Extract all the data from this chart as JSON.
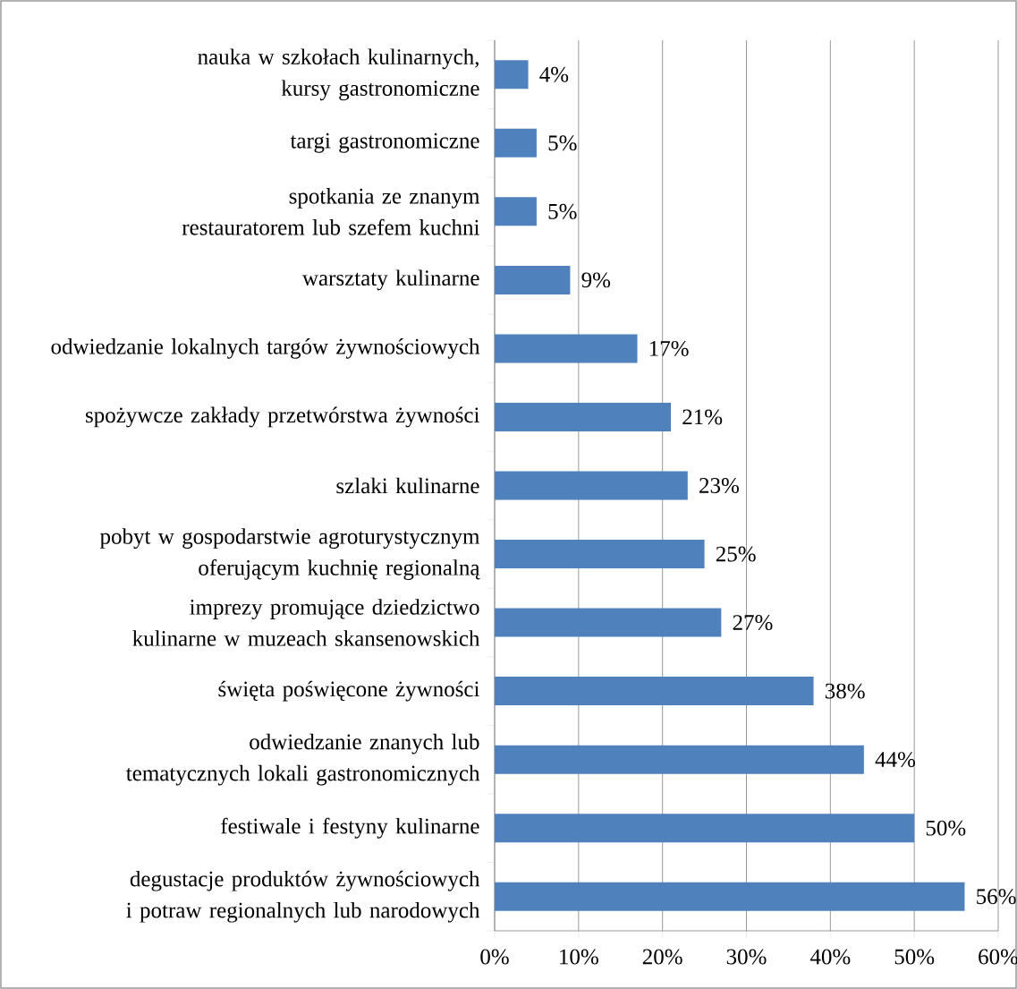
{
  "chart_data": {
    "type": "bar",
    "orientation": "horizontal",
    "categories": [
      "nauka w szkołach kulinarnych, kursy gastronomiczne",
      "targi gastronomiczne",
      "spotkania ze znanym restauratorem lub szefem kuchni",
      "warsztaty kulinarne",
      "odwiedzanie lokalnych targów żywnościowych",
      "spożywcze zakłady przetwórstwa żywności",
      "szlaki kulinarne",
      "pobyt w gospodarstwie agroturystycznym oferującym kuchnię regionalną",
      "imprezy promujące dziedzictwo kulinarne w muzeach skansenowskich",
      "święta poświęcone żywności",
      "odwiedzanie znanych lub tematycznych lokali gastronomicznych",
      "festiwale i  festyny kulinarne",
      "degustacje produktów żywnościowych i potraw regionalnych lub narodowych"
    ],
    "values": [
      4,
      5,
      5,
      9,
      17,
      21,
      23,
      25,
      27,
      38,
      44,
      50,
      56
    ],
    "value_labels": [
      "4%",
      "5%",
      "5%",
      "9%",
      "17%",
      "21%",
      "23%",
      "25%",
      "27%",
      "38%",
      "44%",
      "50%",
      "56%"
    ],
    "color": "#4f81bd",
    "xlim": [
      0,
      60
    ],
    "xticks": [
      {
        "value": 0,
        "label": "0%"
      },
      {
        "value": 10,
        "label": "10%"
      },
      {
        "value": 20,
        "label": "20%"
      },
      {
        "value": 30,
        "label": "30%"
      },
      {
        "value": 40,
        "label": "40%"
      },
      {
        "value": 50,
        "label": "50%"
      },
      {
        "value": 60,
        "label": "60%"
      }
    ],
    "grid": "x"
  }
}
